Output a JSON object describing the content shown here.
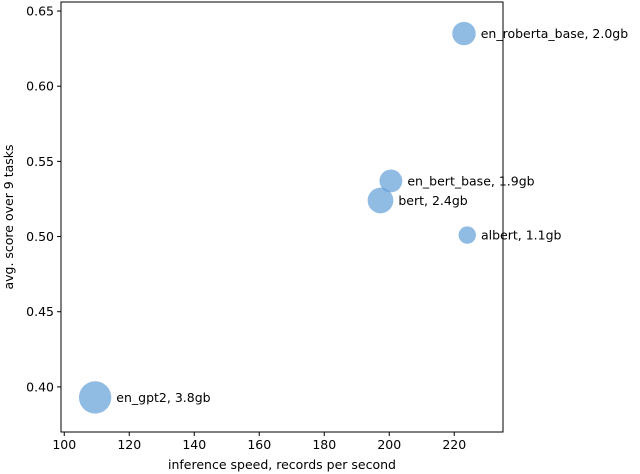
{
  "chart_data": {
    "type": "scatter",
    "title": "",
    "xlabel": "inference speed, records per second",
    "ylabel": "avg. score over 9 tasks",
    "xlim": [
      99,
      235
    ],
    "ylim": [
      0.37,
      0.656
    ],
    "xticks": [
      100,
      120,
      140,
      160,
      180,
      200,
      220
    ],
    "yticks": [
      0.4,
      0.45,
      0.5,
      0.55,
      0.6,
      0.65
    ],
    "grid": false,
    "marker_color": "#5b9bd5",
    "points": [
      {
        "label": "en_roberta_base, 2.0gb",
        "x": 223.0,
        "y": 0.635,
        "size_gb": 2.0
      },
      {
        "label": "en_bert_base, 1.9gb",
        "x": 200.5,
        "y": 0.537,
        "size_gb": 1.9
      },
      {
        "label": "bert, 2.4gb",
        "x": 197.3,
        "y": 0.524,
        "size_gb": 2.4
      },
      {
        "label": "albert, 1.1gb",
        "x": 224.0,
        "y": 0.501,
        "size_gb": 1.1
      },
      {
        "label": "en_gpt2, 3.8gb",
        "x": 109.5,
        "y": 0.393,
        "size_gb": 3.8
      }
    ]
  }
}
